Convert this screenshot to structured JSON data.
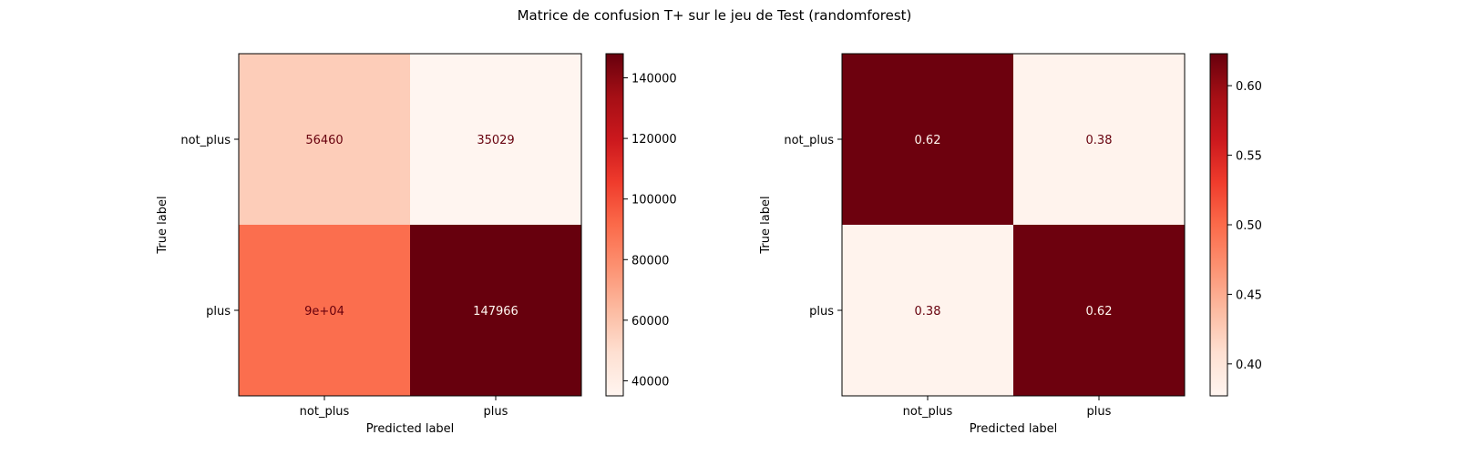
{
  "suptitle": "Matrice de confusion T+ sur le jeu de Test (randomforest)",
  "chart_data": [
    {
      "type": "heatmap",
      "title": "",
      "xlabel": "Predicted label",
      "ylabel": "True label",
      "x_categories": [
        "not_plus",
        "plus"
      ],
      "y_categories": [
        "not_plus",
        "plus"
      ],
      "values": [
        [
          56460,
          35029
        ],
        [
          90000,
          147966
        ]
      ],
      "cell_labels": [
        [
          "56460",
          "35029"
        ],
        [
          "9e+04",
          "147966"
        ]
      ],
      "colormap": "Reds",
      "color_range": [
        35029,
        147966
      ],
      "colorbar_ticks": [
        40000,
        60000,
        80000,
        100000,
        120000,
        140000
      ],
      "colorbar_tick_labels": [
        "40000",
        "60000",
        "80000",
        "100000",
        "120000",
        "140000"
      ]
    },
    {
      "type": "heatmap",
      "title": "",
      "xlabel": "Predicted label",
      "ylabel": "True label",
      "x_categories": [
        "not_plus",
        "plus"
      ],
      "y_categories": [
        "not_plus",
        "plus"
      ],
      "values": [
        [
          0.62,
          0.38
        ],
        [
          0.38,
          0.62
        ]
      ],
      "cell_labels": [
        [
          "0.62",
          "0.38"
        ],
        [
          "0.38",
          "0.62"
        ]
      ],
      "colormap": "Reds",
      "color_range": [
        0.377,
        0.623
      ],
      "colorbar_ticks": [
        0.4,
        0.45,
        0.5,
        0.55,
        0.6
      ],
      "colorbar_tick_labels": [
        "0.40",
        "0.45",
        "0.50",
        "0.55",
        "0.60"
      ]
    }
  ]
}
